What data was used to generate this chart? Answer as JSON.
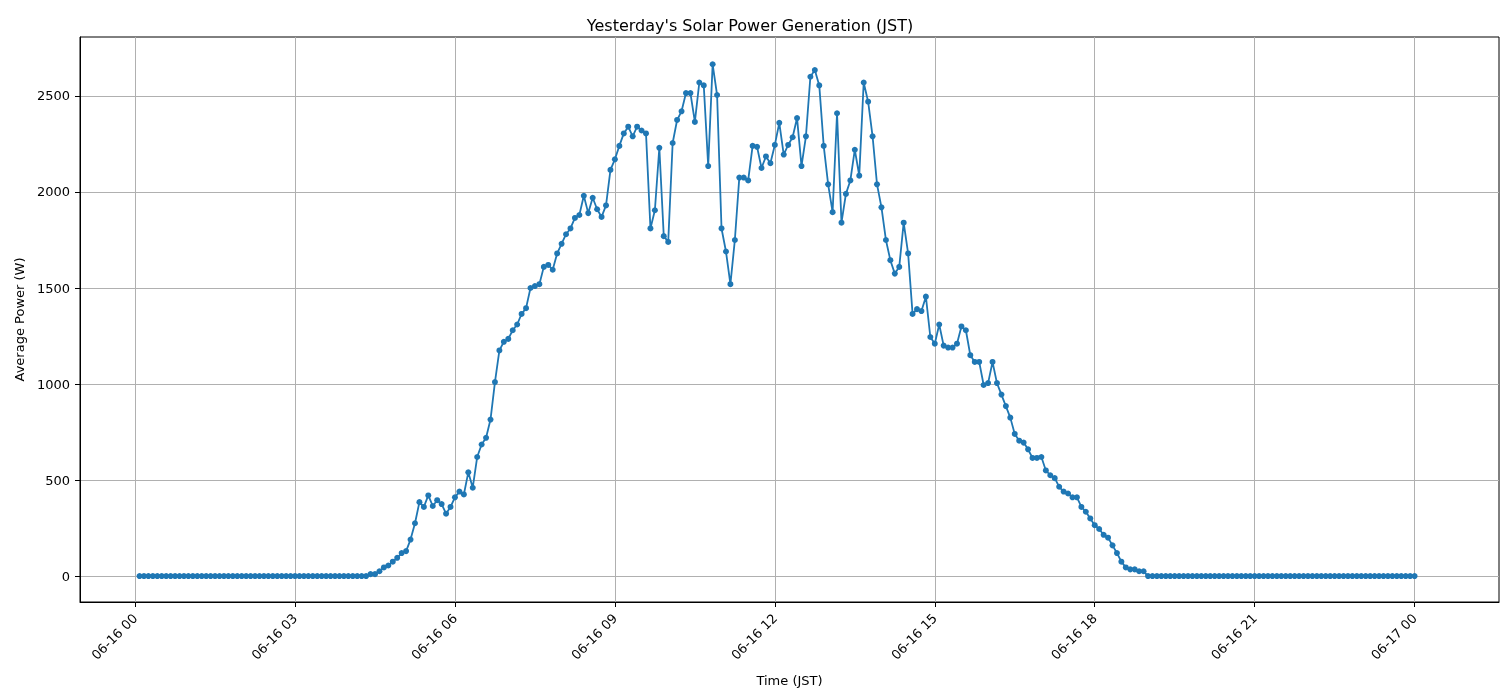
{
  "chart_data": {
    "type": "line",
    "title": "Yesterday's Solar Power Generation (JST)",
    "xlabel": "Time (JST)",
    "ylabel": "Average Power (W)",
    "xlim": [
      "--06-15T22:58",
      "--06-17T01:35"
    ],
    "ylim": [
      -135,
      2807
    ],
    "xticks": [
      {
        "value": "--06-16T00:00",
        "label": "06-16 00"
      },
      {
        "value": "--06-16T03:00",
        "label": "06-16 03"
      },
      {
        "value": "--06-16T06:00",
        "label": "06-16 06"
      },
      {
        "value": "--06-16T09:00",
        "label": "06-16 09"
      },
      {
        "value": "--06-16T12:00",
        "label": "06-16 12"
      },
      {
        "value": "--06-16T15:00",
        "label": "06-16 15"
      },
      {
        "value": "--06-16T18:00",
        "label": "06-16 18"
      },
      {
        "value": "--06-16T21:00",
        "label": "06-16 21"
      },
      {
        "value": "--06-17T00:00",
        "label": "06-17 00"
      }
    ],
    "yticks": [
      0,
      500,
      1000,
      1500,
      2000,
      2500
    ],
    "grid": true,
    "marker": "circle",
    "line_style": "solid",
    "x": [
      "--06-16T00:05",
      "--06-16T00:10",
      "--06-16T00:15",
      "--06-16T00:20",
      "--06-16T00:25",
      "--06-16T00:30",
      "--06-16T00:35",
      "--06-16T00:40",
      "--06-16T00:45",
      "--06-16T00:50",
      "--06-16T00:55",
      "--06-16T01:00",
      "--06-16T01:05",
      "--06-16T01:10",
      "--06-16T01:15",
      "--06-16T01:20",
      "--06-16T01:25",
      "--06-16T01:30",
      "--06-16T01:35",
      "--06-16T01:40",
      "--06-16T01:45",
      "--06-16T01:50",
      "--06-16T01:55",
      "--06-16T02:00",
      "--06-16T02:05",
      "--06-16T02:10",
      "--06-16T02:15",
      "--06-16T02:20",
      "--06-16T02:25",
      "--06-16T02:30",
      "--06-16T02:35",
      "--06-16T02:40",
      "--06-16T02:45",
      "--06-16T02:50",
      "--06-16T02:55",
      "--06-16T03:00",
      "--06-16T03:05",
      "--06-16T03:10",
      "--06-16T03:15",
      "--06-16T03:20",
      "--06-16T03:25",
      "--06-16T03:30",
      "--06-16T03:35",
      "--06-16T03:40",
      "--06-16T03:45",
      "--06-16T03:50",
      "--06-16T03:55",
      "--06-16T04:00",
      "--06-16T04:05",
      "--06-16T04:10",
      "--06-16T04:15",
      "--06-16T04:20",
      "--06-16T04:25",
      "--06-16T04:30",
      "--06-16T04:35",
      "--06-16T04:40",
      "--06-16T04:45",
      "--06-16T04:50",
      "--06-16T04:55",
      "--06-16T05:00",
      "--06-16T05:05",
      "--06-16T05:10",
      "--06-16T05:15",
      "--06-16T05:20",
      "--06-16T05:25",
      "--06-16T05:30",
      "--06-16T05:35",
      "--06-16T05:40",
      "--06-16T05:45",
      "--06-16T05:50",
      "--06-16T05:55",
      "--06-16T06:00",
      "--06-16T06:05",
      "--06-16T06:10",
      "--06-16T06:15",
      "--06-16T06:20",
      "--06-16T06:25",
      "--06-16T06:30",
      "--06-16T06:35",
      "--06-16T06:40",
      "--06-16T06:45",
      "--06-16T06:50",
      "--06-16T06:55",
      "--06-16T07:00",
      "--06-16T07:05",
      "--06-16T07:10",
      "--06-16T07:15",
      "--06-16T07:20",
      "--06-16T07:25",
      "--06-16T07:30",
      "--06-16T07:35",
      "--06-16T07:40",
      "--06-16T07:45",
      "--06-16T07:50",
      "--06-16T07:55",
      "--06-16T08:00",
      "--06-16T08:05",
      "--06-16T08:10",
      "--06-16T08:15",
      "--06-16T08:20",
      "--06-16T08:25",
      "--06-16T08:30",
      "--06-16T08:35",
      "--06-16T08:40",
      "--06-16T08:45",
      "--06-16T08:50",
      "--06-16T08:55",
      "--06-16T09:00",
      "--06-16T09:05",
      "--06-16T09:10",
      "--06-16T09:15",
      "--06-16T09:20",
      "--06-16T09:25",
      "--06-16T09:30",
      "--06-16T09:35",
      "--06-16T09:40",
      "--06-16T09:45",
      "--06-16T09:50",
      "--06-16T09:55",
      "--06-16T10:00",
      "--06-16T10:05",
      "--06-16T10:10",
      "--06-16T10:15",
      "--06-16T10:20",
      "--06-16T10:25",
      "--06-16T10:30",
      "--06-16T10:35",
      "--06-16T10:40",
      "--06-16T10:45",
      "--06-16T10:50",
      "--06-16T10:55",
      "--06-16T11:00",
      "--06-16T11:05",
      "--06-16T11:10",
      "--06-16T11:15",
      "--06-16T11:20",
      "--06-16T11:25",
      "--06-16T11:30",
      "--06-16T11:35",
      "--06-16T11:40",
      "--06-16T11:45",
      "--06-16T11:50",
      "--06-16T11:55",
      "--06-16T12:00",
      "--06-16T12:05",
      "--06-16T12:10",
      "--06-16T12:15",
      "--06-16T12:20",
      "--06-16T12:25",
      "--06-16T12:30",
      "--06-16T12:35",
      "--06-16T12:40",
      "--06-16T12:45",
      "--06-16T12:50",
      "--06-16T12:55",
      "--06-16T13:00",
      "--06-16T13:05",
      "--06-16T13:10",
      "--06-16T13:15",
      "--06-16T13:20",
      "--06-16T13:25",
      "--06-16T13:30",
      "--06-16T13:35",
      "--06-16T13:40",
      "--06-16T13:45",
      "--06-16T13:50",
      "--06-16T13:55",
      "--06-16T14:00",
      "--06-16T14:05",
      "--06-16T14:10",
      "--06-16T14:15",
      "--06-16T14:20",
      "--06-16T14:25",
      "--06-16T14:30",
      "--06-16T14:35",
      "--06-16T14:40",
      "--06-16T14:45",
      "--06-16T14:50",
      "--06-16T14:55",
      "--06-16T15:00",
      "--06-16T15:05",
      "--06-16T15:10",
      "--06-16T15:15",
      "--06-16T15:20",
      "--06-16T15:25",
      "--06-16T15:30",
      "--06-16T15:35",
      "--06-16T15:40",
      "--06-16T15:45",
      "--06-16T15:50",
      "--06-16T15:55",
      "--06-16T16:00",
      "--06-16T16:05",
      "--06-16T16:10",
      "--06-16T16:15",
      "--06-16T16:20",
      "--06-16T16:25",
      "--06-16T16:30",
      "--06-16T16:35",
      "--06-16T16:40",
      "--06-16T16:45",
      "--06-16T16:50",
      "--06-16T16:55",
      "--06-16T17:00",
      "--06-16T17:05",
      "--06-16T17:10",
      "--06-16T17:15",
      "--06-16T17:20",
      "--06-16T17:25",
      "--06-16T17:30",
      "--06-16T17:35",
      "--06-16T17:40",
      "--06-16T17:45",
      "--06-16T17:50",
      "--06-16T17:55",
      "--06-16T18:00",
      "--06-16T18:05",
      "--06-16T18:10",
      "--06-16T18:15",
      "--06-16T18:20",
      "--06-16T18:25",
      "--06-16T18:30",
      "--06-16T18:35",
      "--06-16T18:40",
      "--06-16T18:45",
      "--06-16T18:50",
      "--06-16T18:55",
      "--06-16T19:00",
      "--06-16T19:05",
      "--06-16T19:10",
      "--06-16T19:15",
      "--06-16T19:20",
      "--06-16T19:25",
      "--06-16T19:30",
      "--06-16T19:35",
      "--06-16T19:40",
      "--06-16T19:45",
      "--06-16T19:50",
      "--06-16T19:55",
      "--06-16T20:00",
      "--06-16T20:05",
      "--06-16T20:10",
      "--06-16T20:15",
      "--06-16T20:20",
      "--06-16T20:25",
      "--06-16T20:30",
      "--06-16T20:35",
      "--06-16T20:40",
      "--06-16T20:45",
      "--06-16T20:50",
      "--06-16T20:55",
      "--06-16T21:00",
      "--06-16T21:05",
      "--06-16T21:10",
      "--06-16T21:15",
      "--06-16T21:20",
      "--06-16T21:25",
      "--06-16T21:30",
      "--06-16T21:35",
      "--06-16T21:40",
      "--06-16T21:45",
      "--06-16T21:50",
      "--06-16T21:55",
      "--06-16T22:00",
      "--06-16T22:05",
      "--06-16T22:10",
      "--06-16T22:15",
      "--06-16T22:20",
      "--06-16T22:25",
      "--06-16T22:30",
      "--06-16T22:35",
      "--06-16T22:40",
      "--06-16T22:45",
      "--06-16T22:50",
      "--06-16T22:55",
      "--06-16T23:00",
      "--06-16T23:05",
      "--06-16T23:10",
      "--06-16T23:15",
      "--06-16T23:20",
      "--06-16T23:25",
      "--06-16T23:30",
      "--06-16T23:35",
      "--06-16T23:40",
      "--06-16T23:45",
      "--06-16T23:50",
      "--06-16T23:55",
      "--06-17T00:00"
    ],
    "series": [
      {
        "color": "#1f77b4",
        "values": [
          0,
          0,
          0,
          0,
          0,
          0,
          0,
          0,
          0,
          0,
          0,
          0,
          0,
          0,
          0,
          0,
          0,
          0,
          0,
          0,
          0,
          0,
          0,
          0,
          0,
          0,
          0,
          0,
          0,
          0,
          0,
          0,
          0,
          0,
          0,
          0,
          0,
          0,
          0,
          0,
          0,
          0,
          0,
          0,
          0,
          0,
          0,
          0,
          0,
          0,
          0,
          0,
          10,
          10,
          25,
          45,
          55,
          75,
          95,
          120,
          130,
          190,
          275,
          385,
          360,
          420,
          365,
          395,
          375,
          325,
          360,
          410,
          440,
          425,
          540,
          460,
          620,
          685,
          720,
          815,
          1010,
          1175,
          1220,
          1235,
          1280,
          1310,
          1365,
          1395,
          1500,
          1510,
          1520,
          1610,
          1620,
          1595,
          1680,
          1730,
          1780,
          1810,
          1865,
          1880,
          1980,
          1890,
          1970,
          1910,
          1870,
          1930,
          2115,
          2170,
          2240,
          2305,
          2340,
          2290,
          2340,
          2320,
          2305,
          1810,
          1905,
          2230,
          1770,
          1740,
          2255,
          2375,
          2420,
          2515,
          2515,
          2365,
          2570,
          2555,
          2135,
          2665,
          2505,
          1810,
          1690,
          1520,
          1750,
          2075,
          2075,
          2060,
          2240,
          2235,
          2125,
          2185,
          2150,
          2245,
          2360,
          2195,
          2245,
          2285,
          2385,
          2135,
          2290,
          2600,
          2635,
          2555,
          2240,
          2040,
          1895,
          2410,
          1840,
          1990,
          2060,
          2220,
          2085,
          2570,
          2470,
          2290,
          2040,
          1920,
          1750,
          1645,
          1575,
          1610,
          1840,
          1680,
          1365,
          1390,
          1380,
          1455,
          1245,
          1210,
          1310,
          1200,
          1190,
          1190,
          1210,
          1300,
          1280,
          1150,
          1115,
          1115,
          995,
          1005,
          1115,
          1005,
          945,
          885,
          825,
          740,
          705,
          695,
          660,
          615,
          615,
          620,
          550,
          525,
          510,
          465,
          440,
          430,
          410,
          410,
          360,
          335,
          300,
          265,
          245,
          215,
          200,
          160,
          120,
          75,
          45,
          35,
          35,
          25,
          25,
          0,
          0,
          0,
          0,
          0,
          0,
          0,
          0,
          0,
          0,
          0,
          0,
          0,
          0,
          0,
          0,
          0,
          0,
          0,
          0,
          0,
          0,
          0,
          0,
          0,
          0,
          0,
          0,
          0,
          0,
          0,
          0,
          0,
          0,
          0,
          0,
          0,
          0,
          0,
          0,
          0,
          0,
          0,
          0,
          0,
          0,
          0,
          0,
          0,
          0,
          0,
          0,
          0,
          0,
          0,
          0,
          0,
          0,
          0,
          0,
          0
        ]
      }
    ]
  }
}
